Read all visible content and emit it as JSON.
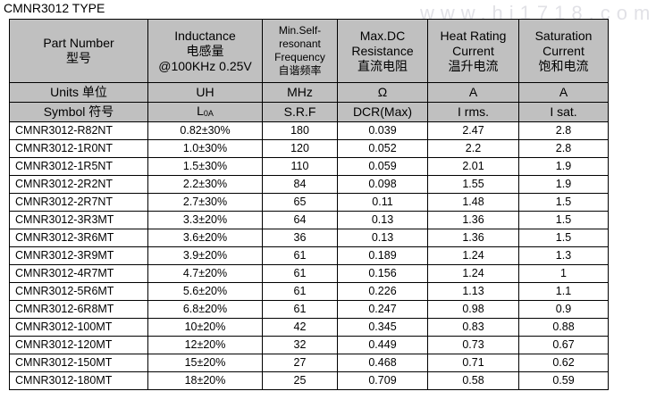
{
  "title": "CMNR3012 TYPE",
  "watermark": "www.hi1718.com",
  "table": {
    "headers": [
      [
        "Part Number",
        "型号"
      ],
      [
        "Inductance",
        "电感量",
        "@100KHz 0.25V"
      ],
      [
        "Min.Self-",
        "resonant",
        "Frequency",
        "自谐频率"
      ],
      [
        "Max.DC",
        "Resistance",
        "直流电阻"
      ],
      [
        "Heat Rating",
        "Current",
        "温升电流"
      ],
      [
        "Saturation",
        "Current",
        "饱和电流"
      ]
    ],
    "units": [
      "Units 单位",
      "UH",
      "MHz",
      "Ω",
      "A",
      "A"
    ],
    "symbols": [
      "Symbol 符号",
      {
        "text": "L",
        "sub": "0A"
      },
      "S.R.F",
      "DCR(Max)",
      "I rms.",
      "I sat."
    ],
    "rows": [
      [
        "CMNR3012-R82NT",
        "0.82±30%",
        "180",
        "0.039",
        "2.47",
        "2.8"
      ],
      [
        "CMNR3012-1R0NT",
        "1.0±30%",
        "120",
        "0.052",
        "2.2",
        "2.8"
      ],
      [
        "CMNR3012-1R5NT",
        "1.5±30%",
        "110",
        "0.059",
        "2.01",
        "1.9"
      ],
      [
        "CMNR3012-2R2NT",
        "2.2±30%",
        "84",
        "0.098",
        "1.55",
        "1.9"
      ],
      [
        "CMNR3012-2R7NT",
        "2.7±30%",
        "65",
        "0.11",
        "1.48",
        "1.5"
      ],
      [
        "CMNR3012-3R3MT",
        "3.3±20%",
        "64",
        "0.13",
        "1.36",
        "1.5"
      ],
      [
        "CMNR3012-3R6MT",
        "3.6±20%",
        "36",
        "0.13",
        "1.36",
        "1.5"
      ],
      [
        "CMNR3012-3R9MT",
        "3.9±20%",
        "61",
        "0.189",
        "1.24",
        "1.3"
      ],
      [
        "CMNR3012-4R7MT",
        "4.7±20%",
        "61",
        "0.156",
        "1.24",
        "1"
      ],
      [
        "CMNR3012-5R6MT",
        "5.6±20%",
        "61",
        "0.226",
        "1.13",
        "1.1"
      ],
      [
        "CMNR3012-6R8MT",
        "6.8±20%",
        "61",
        "0.247",
        "0.98",
        "0.9"
      ],
      [
        "CMNR3012-100MT",
        "10±20%",
        "42",
        "0.345",
        "0.83",
        "0.88"
      ],
      [
        "CMNR3012-120MT",
        "12±20%",
        "32",
        "0.449",
        "0.73",
        "0.67"
      ],
      [
        "CMNR3012-150MT",
        "15±20%",
        "27",
        "0.468",
        "0.71",
        "0.62"
      ],
      [
        "CMNR3012-180MT",
        "18±20%",
        "25",
        "0.709",
        "0.58",
        "0.59"
      ]
    ]
  }
}
